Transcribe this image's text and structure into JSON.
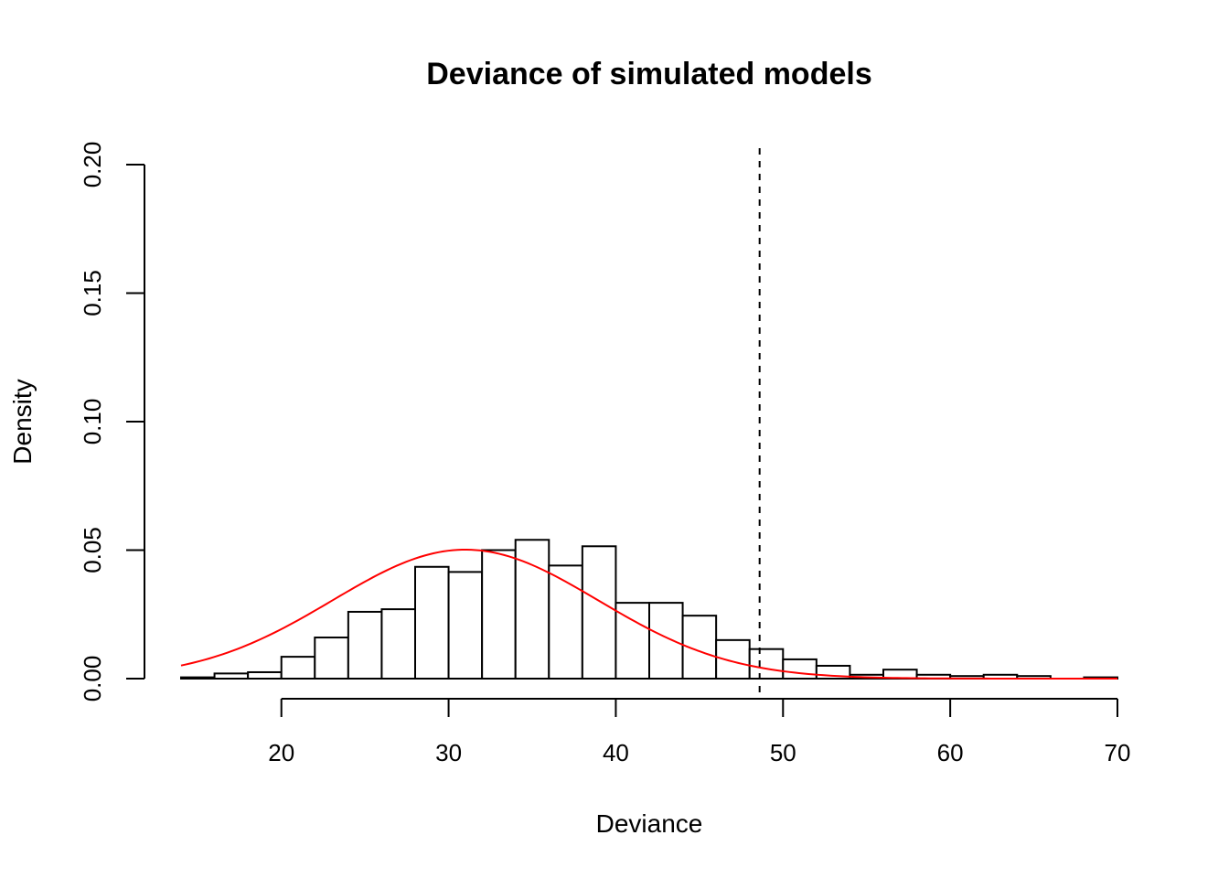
{
  "chart_data": {
    "type": "bar",
    "title": "Deviance of simulated models",
    "xlabel": "Deviance",
    "ylabel": "Density",
    "xlim": [
      14,
      70
    ],
    "ylim": [
      0,
      0.2
    ],
    "x_ticks": [
      {
        "value": 20,
        "label": "20"
      },
      {
        "value": 30,
        "label": "30"
      },
      {
        "value": 40,
        "label": "40"
      },
      {
        "value": 50,
        "label": "50"
      },
      {
        "value": 60,
        "label": "60"
      },
      {
        "value": 70,
        "label": "70"
      }
    ],
    "y_ticks": [
      {
        "value": 0.0,
        "label": "0.00"
      },
      {
        "value": 0.05,
        "label": "0.05"
      },
      {
        "value": 0.1,
        "label": "0.10"
      },
      {
        "value": 0.15,
        "label": "0.15"
      },
      {
        "value": 0.2,
        "label": "0.20"
      }
    ],
    "bin_width": 2,
    "bins": [
      {
        "start": 14,
        "density": 0.0005
      },
      {
        "start": 16,
        "density": 0.002
      },
      {
        "start": 18,
        "density": 0.0025
      },
      {
        "start": 20,
        "density": 0.0085
      },
      {
        "start": 22,
        "density": 0.016
      },
      {
        "start": 24,
        "density": 0.026
      },
      {
        "start": 26,
        "density": 0.027
      },
      {
        "start": 28,
        "density": 0.0435
      },
      {
        "start": 30,
        "density": 0.0415
      },
      {
        "start": 32,
        "density": 0.05
      },
      {
        "start": 34,
        "density": 0.054
      },
      {
        "start": 36,
        "density": 0.044
      },
      {
        "start": 38,
        "density": 0.0515
      },
      {
        "start": 40,
        "density": 0.0295
      },
      {
        "start": 42,
        "density": 0.0295
      },
      {
        "start": 44,
        "density": 0.0245
      },
      {
        "start": 46,
        "density": 0.015
      },
      {
        "start": 48,
        "density": 0.0115
      },
      {
        "start": 50,
        "density": 0.0075
      },
      {
        "start": 52,
        "density": 0.005
      },
      {
        "start": 54,
        "density": 0.0015
      },
      {
        "start": 56,
        "density": 0.0035
      },
      {
        "start": 58,
        "density": 0.0015
      },
      {
        "start": 60,
        "density": 0.001
      },
      {
        "start": 62,
        "density": 0.0015
      },
      {
        "start": 64,
        "density": 0.001
      },
      {
        "start": 66,
        "density": 0.0
      },
      {
        "start": 68,
        "density": 0.0005
      }
    ],
    "density_curve": {
      "distribution": "normal",
      "mean": 31,
      "sd": 7.95,
      "color": "#ff0000",
      "from": 14,
      "to": 70
    },
    "reference_line": {
      "x": 48.6,
      "style": "dashed",
      "color": "#000000"
    },
    "grid": false
  }
}
